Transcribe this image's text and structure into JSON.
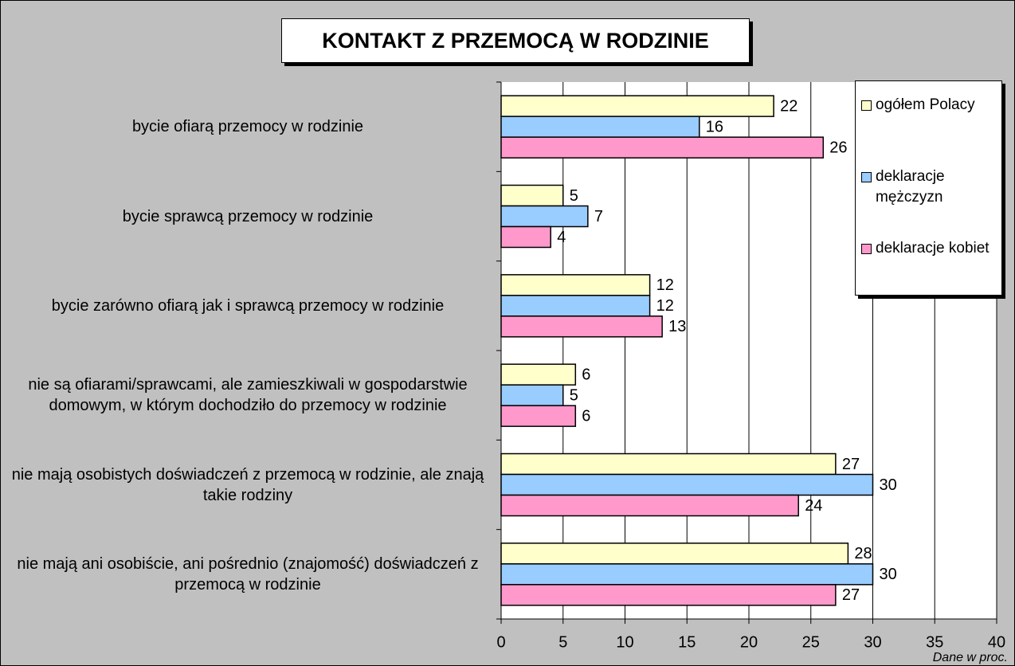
{
  "chart_data": {
    "type": "hbar",
    "title": "KONTAKT Z PRZEMOCĄ W RODZINIE",
    "categories": [
      "bycie ofiarą przemocy w rodzinie",
      "bycie sprawcą przemocy w rodzinie",
      "bycie zarówno ofiarą jak i sprawcą przemocy w rodzinie",
      "nie są ofiarami/sprawcami, ale zamieszkiwali w gospodarstwie domowym, w którym dochodziło do przemocy w rodzinie",
      "nie mają osobistych doświadczeń z przemocą w rodzinie, ale znają takie rodziny",
      "nie mają ani osobiście, ani pośrednio (znajomość) doświadczeń z przemocą w rodzinie"
    ],
    "series": [
      {
        "name": "ogółem Polacy",
        "color": "#ffffcc",
        "values": [
          22,
          5,
          12,
          6,
          27,
          28
        ]
      },
      {
        "name": "deklaracje mężczyzn",
        "color": "#99ccff",
        "values": [
          16,
          7,
          12,
          5,
          30,
          30
        ]
      },
      {
        "name": "deklaracje kobiet",
        "color": "#ff99cc",
        "values": [
          26,
          4,
          13,
          6,
          24,
          27
        ]
      }
    ],
    "xlim": [
      0,
      40
    ],
    "xticks": [
      0,
      5,
      10,
      15,
      20,
      25,
      30,
      35,
      40
    ],
    "grid": true,
    "note": "Dane w proc.",
    "legend": "right"
  }
}
